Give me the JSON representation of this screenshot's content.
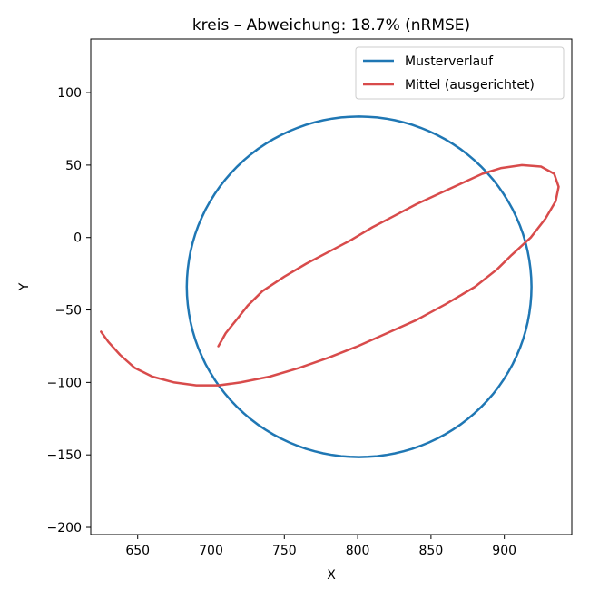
{
  "chart_data": {
    "type": "line",
    "title": "kreis – Abweichung: 18.7% (nRMSE)",
    "xlabel": "X",
    "ylabel": "Y",
    "xlim": [
      618,
      946
    ],
    "ylim": [
      -205,
      137
    ],
    "xticks": [
      650,
      700,
      750,
      800,
      850,
      900
    ],
    "yticks": [
      100,
      50,
      0,
      -50,
      -100,
      -150,
      -200
    ],
    "xtick_labels": [
      "650",
      "700",
      "750",
      "800",
      "850",
      "900"
    ],
    "ytick_labels": [
      "100",
      "50",
      "0",
      "−50",
      "−100",
      "−150",
      "−200"
    ],
    "grid": false,
    "legend_position": "top-right",
    "series": [
      {
        "name": "Musterverlauf",
        "color": "#1f77b4",
        "shape": "circle",
        "center": [
          801,
          -34
        ],
        "radius": 117.5
      },
      {
        "name": "Mittel (ausgerichtet)",
        "color": "#d84b4b",
        "points": [
          [
            625,
            -65
          ],
          [
            630,
            -72
          ],
          [
            638,
            -81
          ],
          [
            648,
            -90
          ],
          [
            660,
            -96
          ],
          [
            675,
            -100
          ],
          [
            690,
            -102
          ],
          [
            705,
            -102
          ],
          [
            720,
            -100
          ],
          [
            740,
            -96
          ],
          [
            760,
            -90
          ],
          [
            780,
            -83
          ],
          [
            800,
            -75
          ],
          [
            820,
            -66
          ],
          [
            840,
            -57
          ],
          [
            860,
            -46
          ],
          [
            880,
            -34
          ],
          [
            895,
            -22
          ],
          [
            905,
            -12
          ],
          [
            918,
            0
          ],
          [
            928,
            13
          ],
          [
            935,
            25
          ],
          [
            937,
            35
          ],
          [
            934,
            44
          ],
          [
            925,
            49
          ],
          [
            912,
            50
          ],
          [
            898,
            48
          ],
          [
            885,
            44
          ],
          [
            870,
            37
          ],
          [
            855,
            30
          ],
          [
            840,
            23
          ],
          [
            825,
            15
          ],
          [
            810,
            7
          ],
          [
            795,
            -2
          ],
          [
            780,
            -10
          ],
          [
            765,
            -18
          ],
          [
            750,
            -27
          ],
          [
            735,
            -37
          ],
          [
            725,
            -47
          ],
          [
            718,
            -56
          ],
          [
            710,
            -66
          ],
          [
            705,
            -75
          ]
        ]
      }
    ]
  }
}
